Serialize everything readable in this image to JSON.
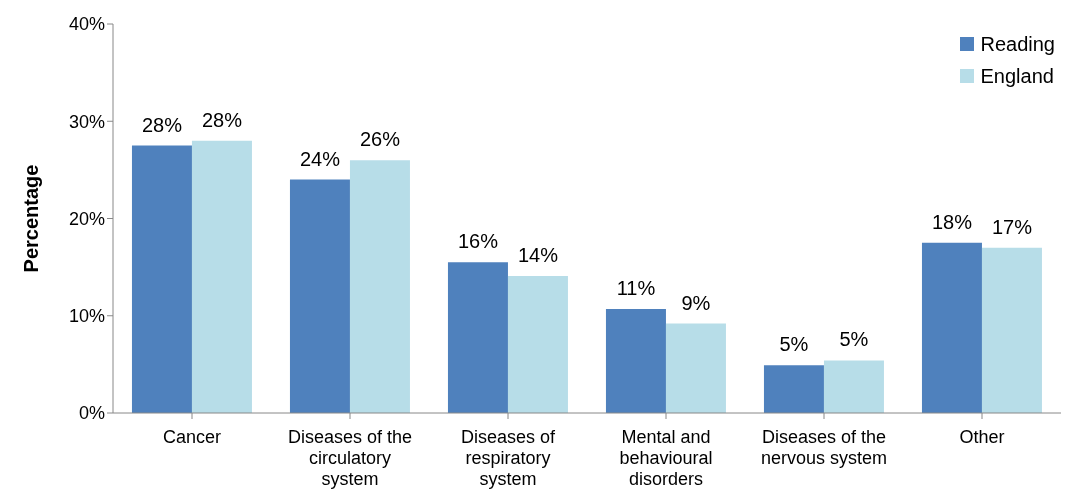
{
  "chart_data": {
    "type": "bar",
    "ylabel": "Percentage",
    "categories": [
      "Cancer",
      "Diseases of the circulatory system",
      "Diseases of respiratory system",
      "Mental and behavioural disorders",
      "Diseases of the nervous system",
      "Other"
    ],
    "series": [
      {
        "name": "Reading",
        "color": "#4f81bd",
        "values": [
          27.5,
          24,
          15.5,
          10.7,
          4.9,
          17.5
        ],
        "value_labels": [
          "28%",
          "24%",
          "16%",
          "11%",
          "5%",
          "18%"
        ]
      },
      {
        "name": "England",
        "color": "#b7dde8",
        "values": [
          28,
          26,
          14.1,
          9.2,
          5.4,
          17
        ],
        "value_labels": [
          "28%",
          "26%",
          "14%",
          "9%",
          "5%",
          "17%"
        ]
      }
    ],
    "ylim": [
      0,
      40
    ],
    "yticks": [
      {
        "value": 0,
        "label": "0%"
      },
      {
        "value": 10,
        "label": "10%"
      },
      {
        "value": 20,
        "label": "20%"
      },
      {
        "value": 30,
        "label": "30%"
      },
      {
        "value": 40,
        "label": "40%"
      }
    ],
    "grid": false,
    "legend": "top right"
  }
}
